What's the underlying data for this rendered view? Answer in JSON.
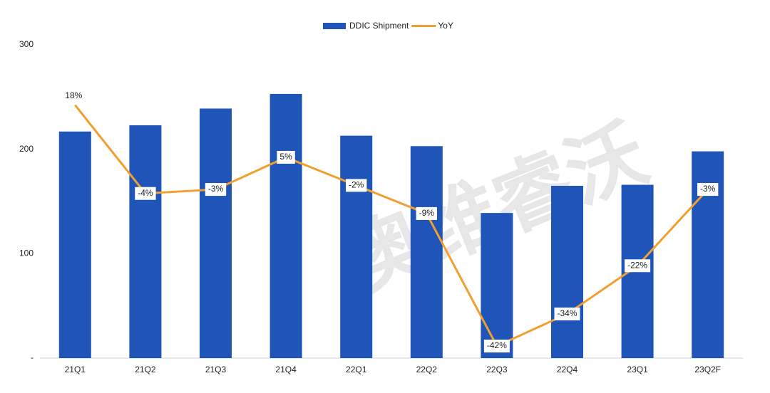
{
  "chart_data": {
    "type": "bar_line",
    "watermark": "奥维睿沃",
    "categories": [
      "21Q1",
      "21Q2",
      "21Q3",
      "21Q4",
      "22Q1",
      "22Q2",
      "22Q3",
      "22Q4",
      "23Q1",
      "23Q2F"
    ],
    "series": [
      {
        "name": "DDIC Shipment",
        "type": "bar",
        "color": "#1f55b8",
        "values": [
          217,
          223,
          239,
          253,
          213,
          203,
          139,
          165,
          166,
          198
        ]
      },
      {
        "name": "YoY",
        "type": "line",
        "axis": "y2",
        "color": "#f0a030",
        "values": [
          18,
          -4,
          -3,
          5,
          -2,
          -9,
          -42,
          -34,
          -22,
          -3
        ],
        "value_labels": [
          "18%",
          "-4%",
          "-3%",
          "5%",
          "-2%",
          "-9%",
          "-42%",
          "-34%",
          "-22%",
          "-3%"
        ]
      }
    ],
    "ylim": [
      0,
      300
    ],
    "yticks": [
      {
        "value": 0,
        "label": "-"
      },
      100,
      200,
      300
    ],
    "y2lim": [
      -45,
      33
    ],
    "legend": "top"
  }
}
